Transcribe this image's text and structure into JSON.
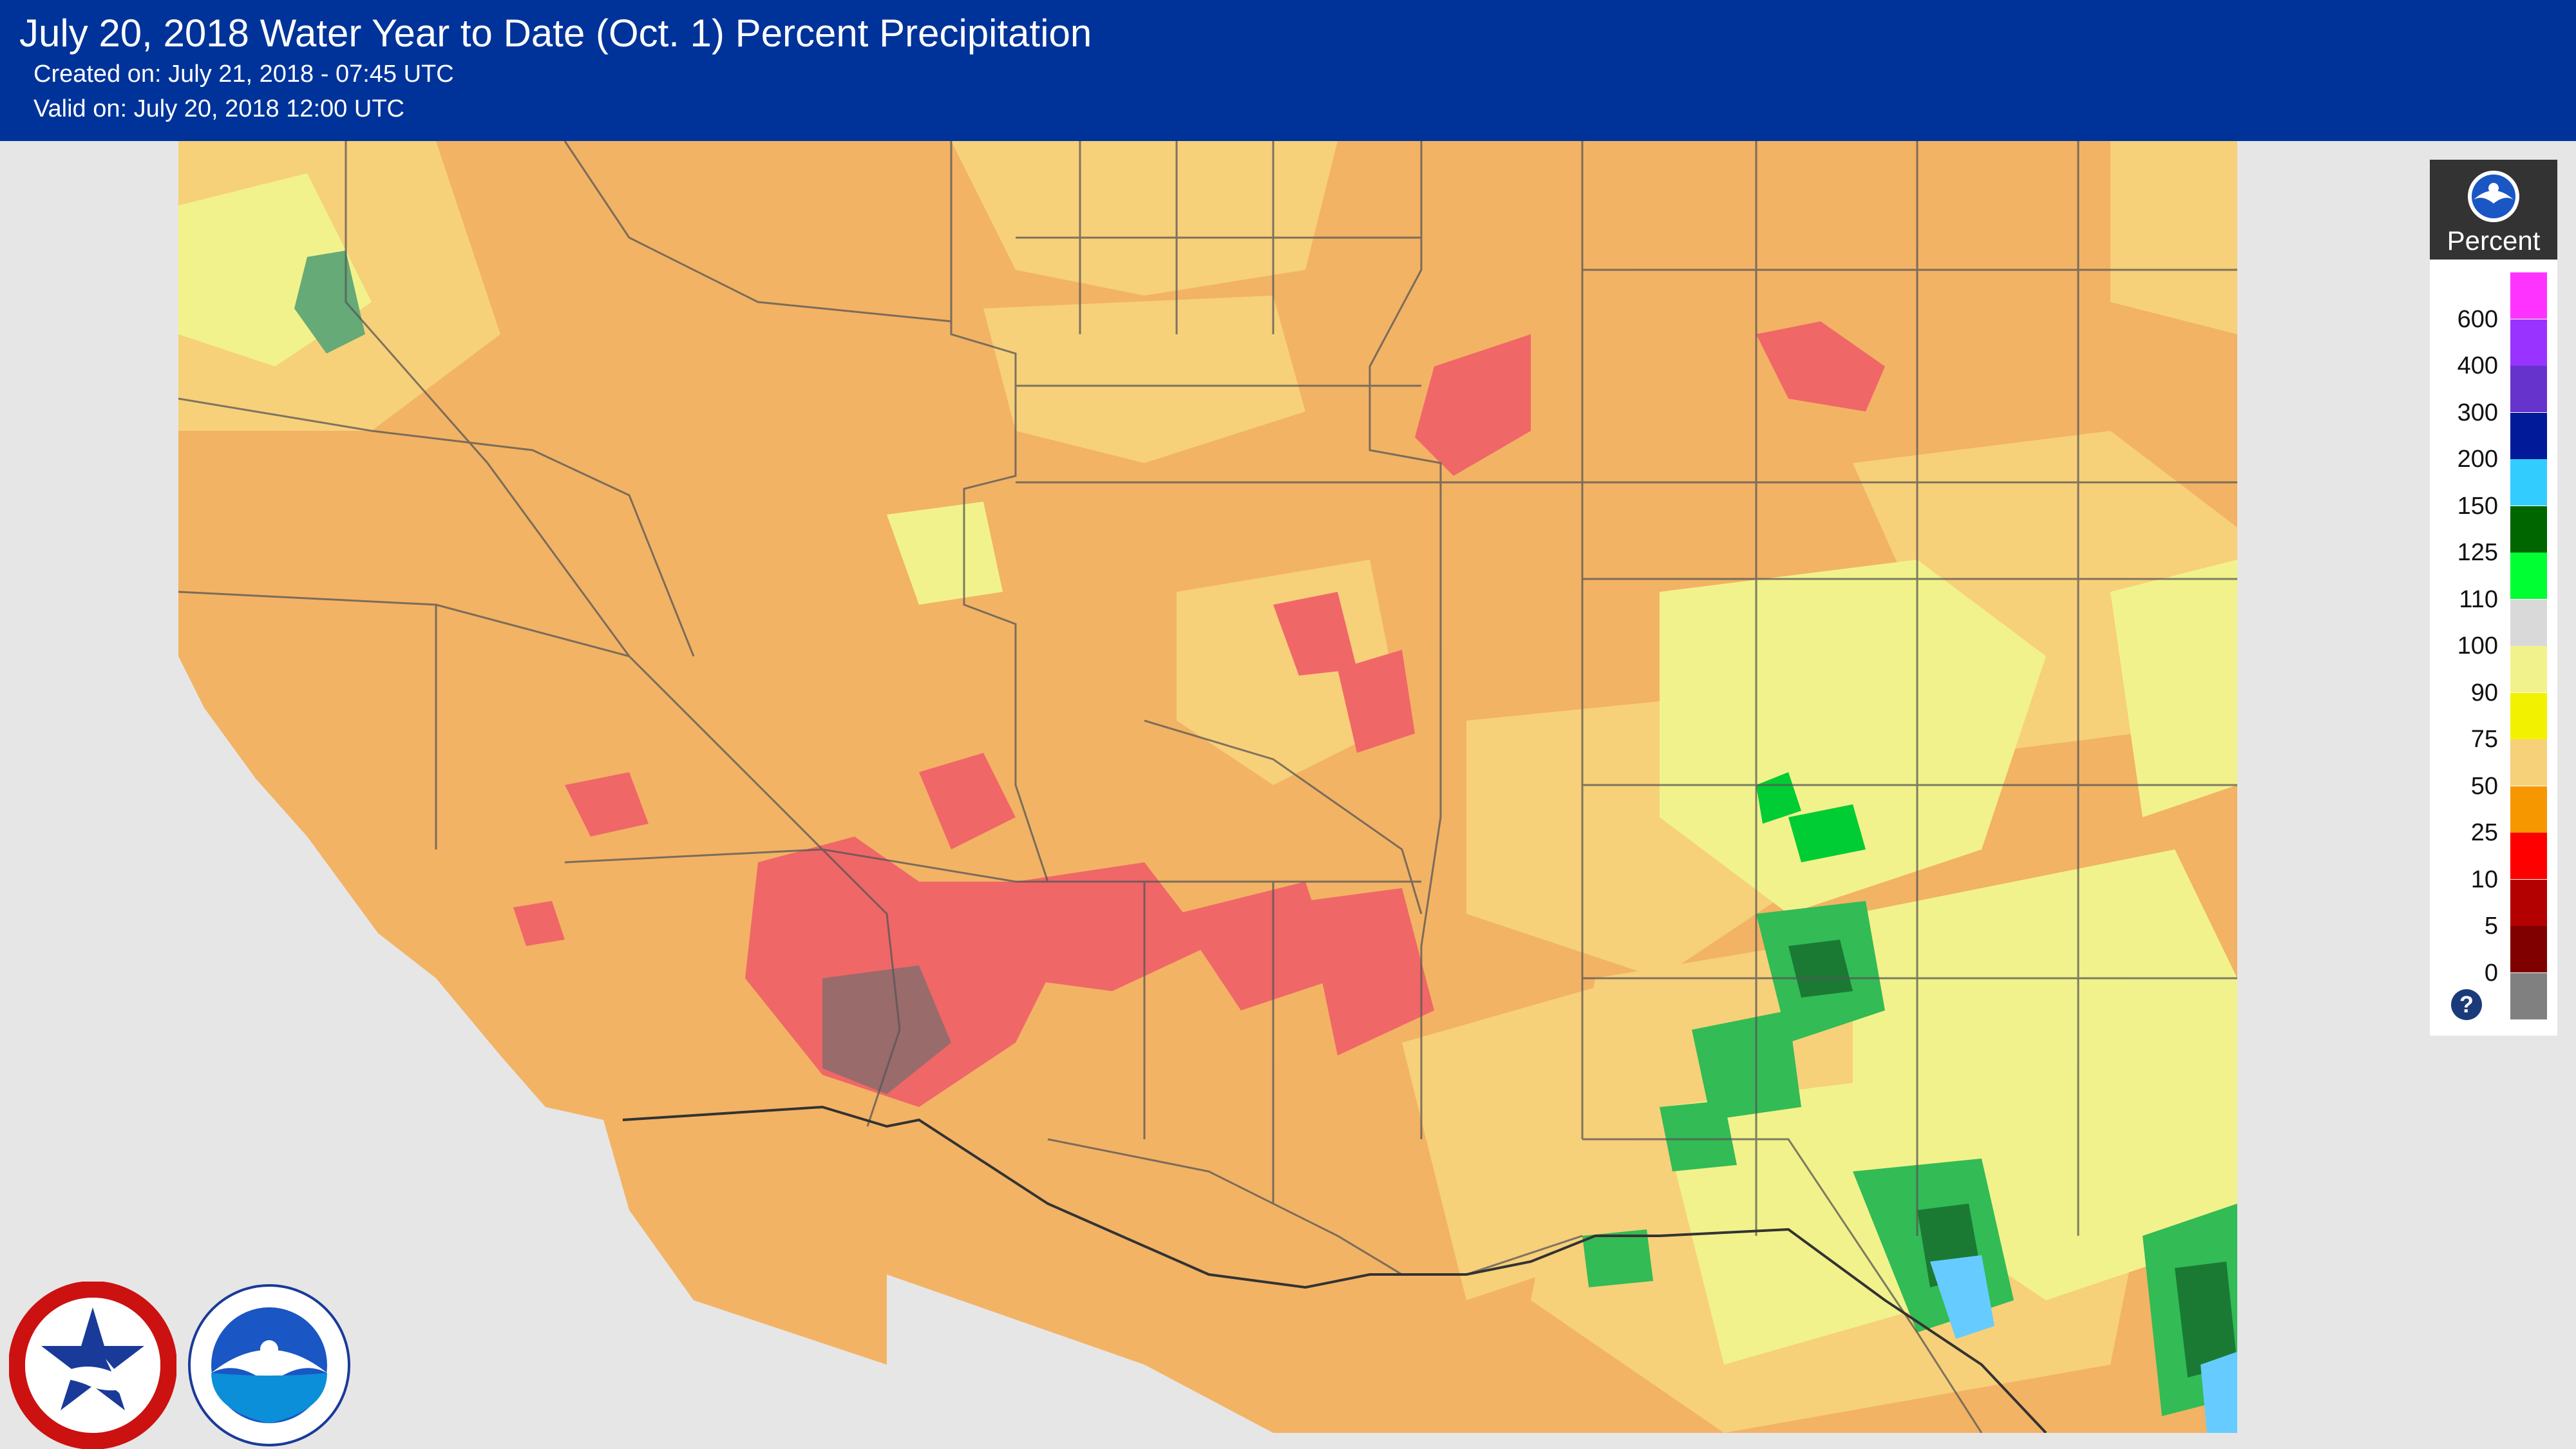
{
  "header": {
    "title": "July 20, 2018 Water Year to Date (Oct. 1) Percent Precipitation",
    "created": "Created on: July 21, 2018 - 07:45 UTC",
    "valid": "Valid on: July 20, 2018 12:00 UTC",
    "background_color": "#003399"
  },
  "legend": {
    "title": "Percent",
    "logo_icon": "noaa-logo-icon",
    "help_icon": "?",
    "classes": [
      {
        "label": "600",
        "color": "#ff33ff"
      },
      {
        "label": "400",
        "color": "#9933ff"
      },
      {
        "label": "300",
        "color": "#6633cc"
      },
      {
        "label": "200",
        "color": "#001a99"
      },
      {
        "label": "150",
        "color": "#33ccff"
      },
      {
        "label": "125",
        "color": "#006600"
      },
      {
        "label": "110",
        "color": "#00ff33"
      },
      {
        "label": "100",
        "color": "#d9d9d9"
      },
      {
        "label": "90",
        "color": "#f2f28c"
      },
      {
        "label": "75",
        "color": "#f2f200"
      },
      {
        "label": "50",
        "color": "#f7d07a"
      },
      {
        "label": "25",
        "color": "#f79700"
      },
      {
        "label": "10",
        "color": "#ff0000"
      },
      {
        "label": "5",
        "color": "#b30000"
      },
      {
        "label": "0",
        "color": "#800000"
      },
      {
        "label": "",
        "color": "#808080"
      }
    ]
  },
  "logos": {
    "left": "national-weather-service-logo",
    "right": "noaa-logo"
  }
}
